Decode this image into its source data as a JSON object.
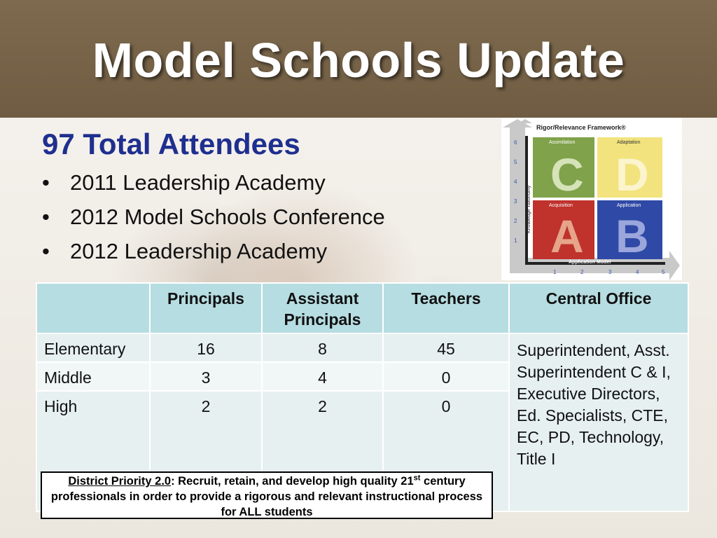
{
  "slide": {
    "title": "Model Schools Update",
    "attendees": "97 Total Attendees",
    "bullets": [
      "2011 Leadership Academy",
      "2012 Model Schools Conference",
      "2012 Leadership Academy"
    ]
  },
  "framework": {
    "title": "Rigor/Relevance Framework®",
    "y_axis_label": "Knowledge Taxonomy",
    "x_axis_label": "Application Model",
    "y_ticks": [
      "1",
      "2",
      "3",
      "4",
      "5",
      "6"
    ],
    "x_ticks": [
      "1",
      "2",
      "3",
      "4",
      "5"
    ],
    "quadrants": [
      {
        "letter": "C",
        "label": "Assimilation",
        "color": "#7fa24a"
      },
      {
        "letter": "D",
        "label": "Adaptation",
        "color": "#f2e37e"
      },
      {
        "letter": "A",
        "label": "Acquisition",
        "color": "#c0322c"
      },
      {
        "letter": "B",
        "label": "Application",
        "color": "#2f49a6"
      }
    ]
  },
  "table": {
    "headers": [
      "",
      "Principals",
      "Assistant Principals",
      "Teachers",
      "Central Office"
    ],
    "rows": [
      {
        "level": "Elementary",
        "principals": "16",
        "assistant": "8",
        "teachers": "45"
      },
      {
        "level": "Middle",
        "principals": "3",
        "assistant": "4",
        "teachers": "0"
      },
      {
        "level": "High",
        "principals": "2",
        "assistant": "2",
        "teachers": "0"
      }
    ],
    "central_office": "Superintendent, Asst. Superintendent C & I, Executive Directors, Ed. Specialists, CTE, EC, PD, Technology, Title I"
  },
  "priority": {
    "label": "District Priority 2.0",
    "text_before_sup": ": Recruit, retain, and develop high quality 21",
    "sup": "st",
    "text_after_sup": " century professionals in order to provide a rigorous and relevant instructional process for ALL students"
  }
}
